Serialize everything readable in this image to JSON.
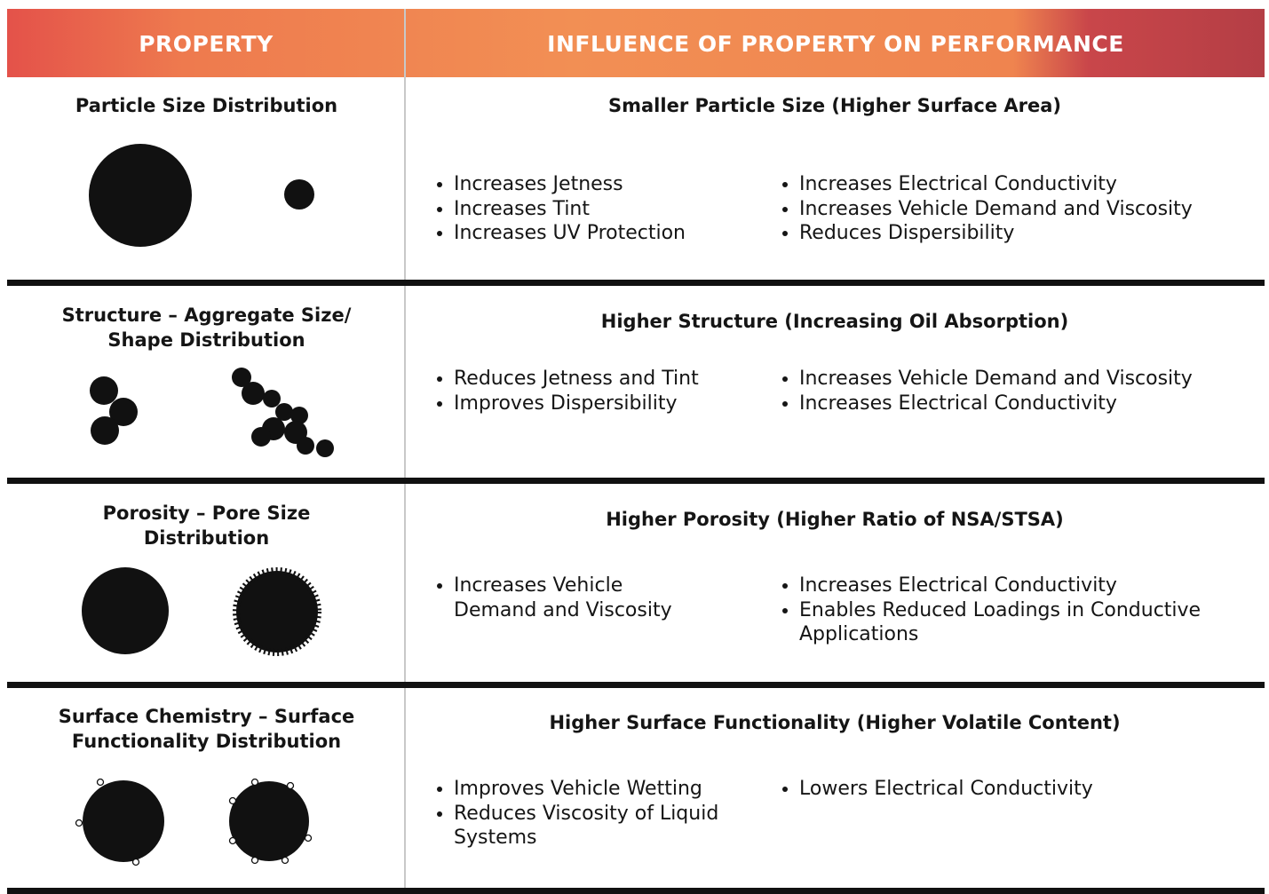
{
  "header": {
    "columns": [
      "PROPERTY",
      "INFLUENCE OF PROPERTY ON PERFORMANCE"
    ]
  },
  "rows": [
    {
      "property": "Particle Size Distribution",
      "heading": "Smaller Particle Size (Higher Surface Area)",
      "left": [
        "Increases Jetness",
        "Increases Tint",
        "Increases UV Protection"
      ],
      "right": [
        "Increases Electrical Conductivity",
        "Increases Vehicle Demand and Viscosity",
        "Reduces Dispersibility"
      ]
    },
    {
      "property": "Structure – Aggregate Size/\nShape Distribution",
      "heading": "Higher Structure (Increasing Oil Absorption)",
      "left": [
        "Reduces Jetness and Tint",
        "Improves Dispersibility"
      ],
      "right": [
        "Increases Vehicle Demand and Viscosity",
        "Increases Electrical Conductivity"
      ]
    },
    {
      "property": "Porosity – Pore Size\nDistribution",
      "heading": "Higher Porosity (Higher Ratio of NSA/STSA)",
      "left": [
        "Increases Vehicle\nDemand and Viscosity"
      ],
      "right": [
        "Increases Electrical Conductivity",
        "Enables Reduced Loadings in Conductive\nApplications"
      ]
    },
    {
      "property": "Surface Chemistry – Surface\nFunctionality Distribution",
      "heading": "Higher Surface Functionality (Higher Volatile Content)",
      "left": [
        "Improves Vehicle Wetting",
        "Reduces Viscosity of Liquid\nSystems"
      ],
      "right": [
        "Lowers Electrical Conductivity"
      ]
    }
  ]
}
